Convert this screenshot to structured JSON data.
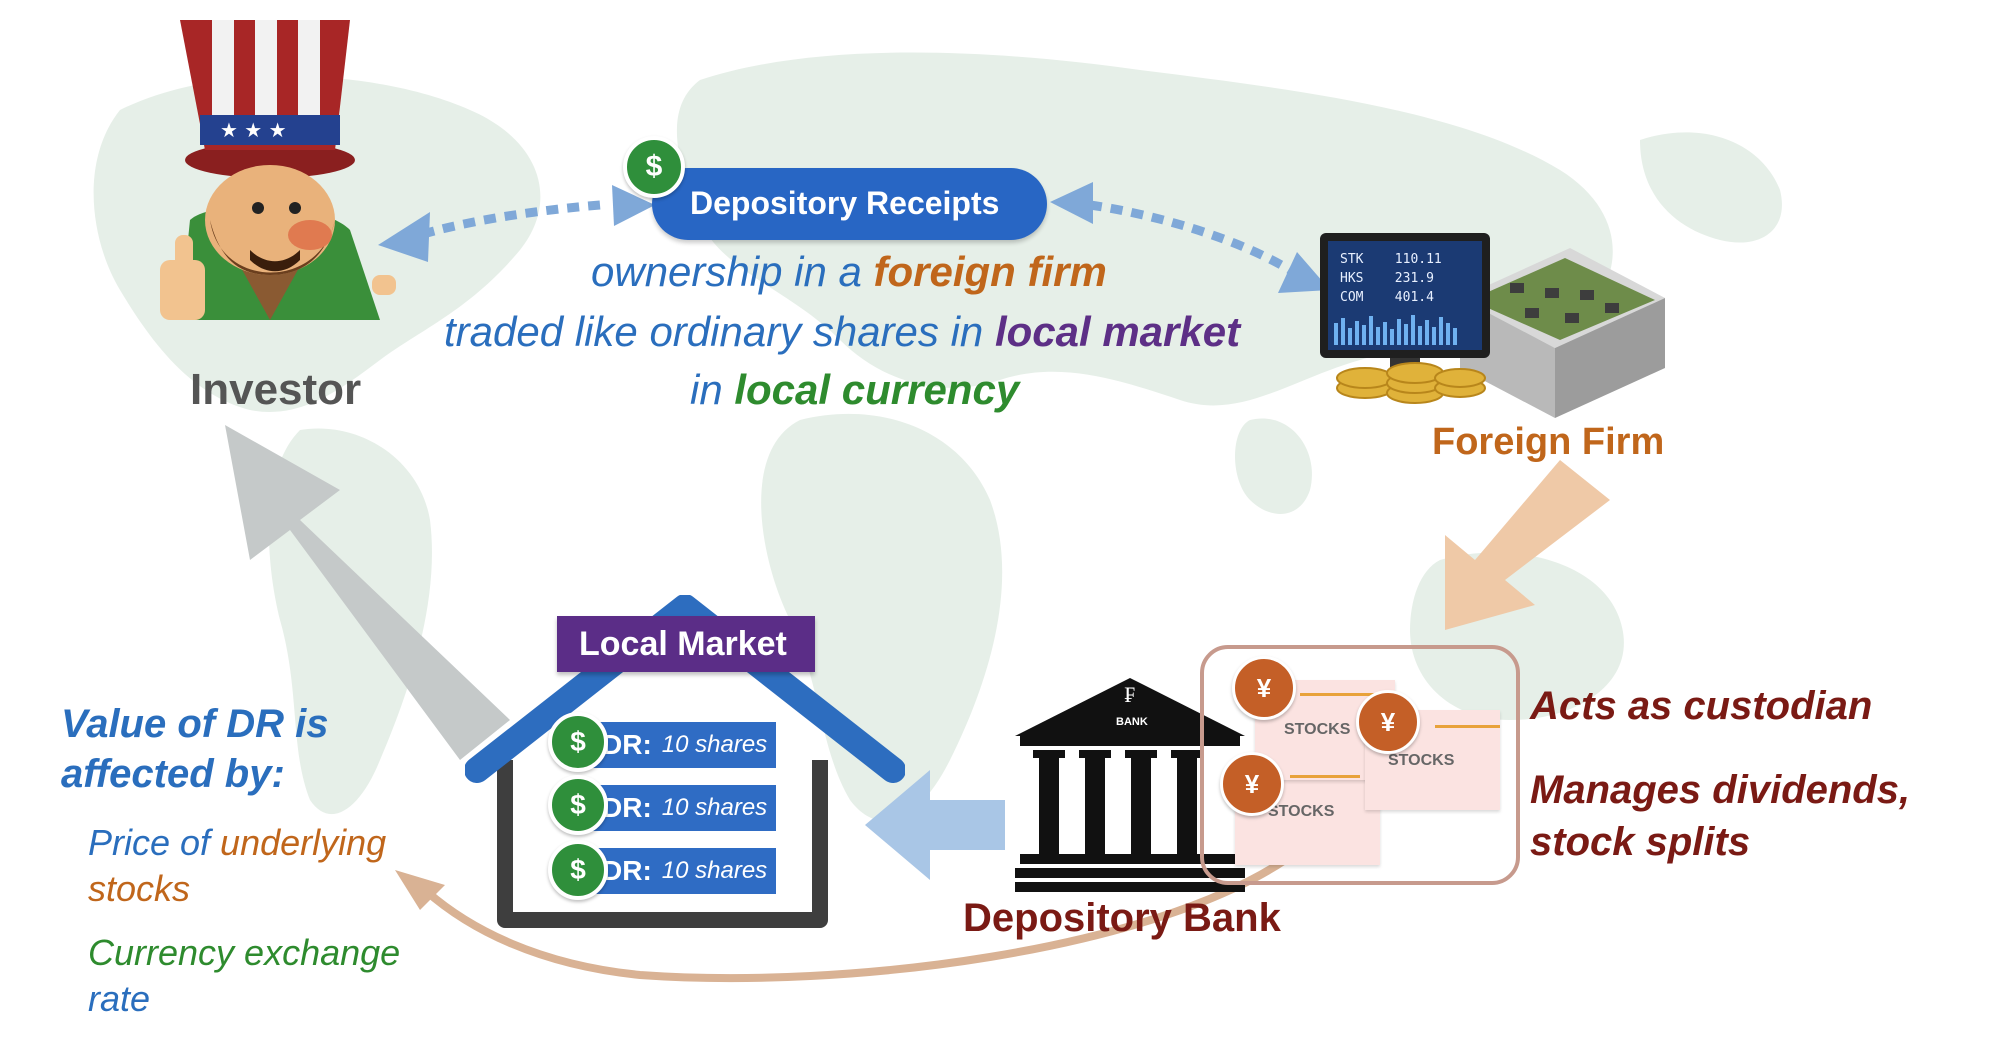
{
  "header": {
    "depository_receipts": "Depository Receipts",
    "dollar_symbol": "$"
  },
  "description": {
    "line1_prefix": "ownership in a ",
    "line1_emphasis": "foreign firm",
    "line2_prefix": "traded like ordinary shares in ",
    "line2_emphasis": "local market",
    "line3_prefix": "in ",
    "line3_emphasis": "local currency"
  },
  "nodes": {
    "investor": "Investor",
    "foreign_firm": "Foreign Firm",
    "local_market": "Local Market",
    "depository_bank": "Depository Bank",
    "bank_sign": "BANK"
  },
  "monitor_readout": [
    {
      "code": "STK",
      "value": "110.11"
    },
    {
      "code": "HKS",
      "value": "231.9"
    },
    {
      "code": "COM",
      "value": "401.4"
    }
  ],
  "dr_items": [
    {
      "prefix": "DR:",
      "text": "10 shares"
    },
    {
      "prefix": "DR:",
      "text": "10 shares"
    },
    {
      "prefix": "DR:",
      "text": "10 shares"
    }
  ],
  "custodian": {
    "yen_symbol": "¥",
    "stocks_label": "STOCKS",
    "role1": "Acts as custodian",
    "role2_line1": "Manages dividends,",
    "role2_line2": "stock splits"
  },
  "value_panel": {
    "title_line1": "Value of DR is",
    "title_line2": "affected by:",
    "factor1_part1": "Price of ",
    "factor1_part2": "underlying",
    "factor1_line2": "stocks",
    "factor2_line1": "Currency exchange",
    "factor2_line2": "rate"
  },
  "colors": {
    "blue": "#2a6ebd",
    "orange": "#c0661b",
    "purple": "#5d2f86",
    "green": "#2e8b2e",
    "dark_red": "#7a1a14",
    "gray": "#555555"
  }
}
